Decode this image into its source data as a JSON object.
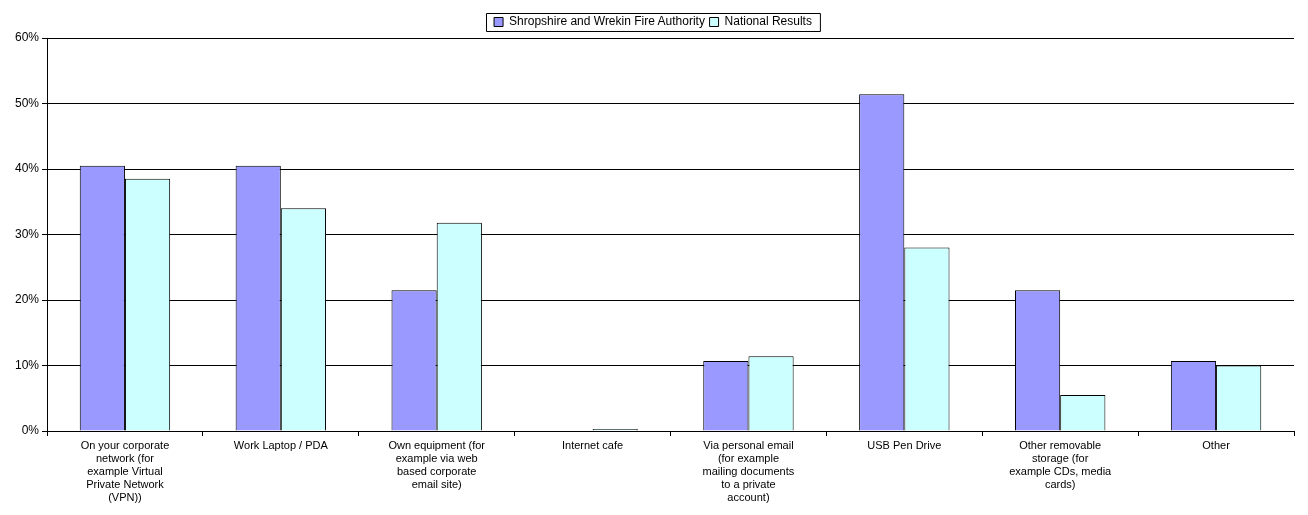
{
  "chart_data": {
    "type": "bar",
    "categories": [
      "On your corporate network (for example Virtual Private Network (VPN))",
      "Work Laptop / PDA",
      "Own equipment (for example via web based corporate email site)",
      "Internet cafe",
      "Via personal email (for example mailing documents to a private account)",
      "USB Pen Drive",
      "Other removable storage (for example CDs, media cards)",
      "Other"
    ],
    "series": [
      {
        "name": "Shropshire and Wrekin Fire Authority",
        "color": "#9999ff",
        "values": [
          40.5,
          40.5,
          21.5,
          0,
          10.7,
          51.4,
          21.5,
          10.7
        ]
      },
      {
        "name": "National Results",
        "color": "#ccffff",
        "values": [
          38.5,
          34.0,
          31.8,
          0.3,
          11.4,
          28.0,
          5.5,
          10.0
        ]
      }
    ],
    "ylim": [
      0,
      60
    ],
    "yticks": [
      {
        "value": 0,
        "label": "0%"
      },
      {
        "value": 10,
        "label": "10%"
      },
      {
        "value": 20,
        "label": "20%"
      },
      {
        "value": 30,
        "label": "30%"
      },
      {
        "value": 40,
        "label": "40%"
      },
      {
        "value": 50,
        "label": "50%"
      },
      {
        "value": 60,
        "label": "60%"
      }
    ],
    "grid": "y",
    "legend": "top"
  }
}
